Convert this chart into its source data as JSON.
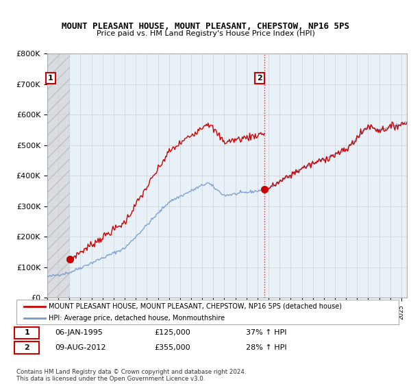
{
  "title": "MOUNT PLEASANT HOUSE, MOUNT PLEASANT, CHEPSTOW, NP16 5PS",
  "subtitle": "Price paid vs. HM Land Registry's House Price Index (HPI)",
  "ylim": [
    0,
    800000
  ],
  "yticks": [
    0,
    100000,
    200000,
    300000,
    400000,
    500000,
    600000,
    700000,
    800000
  ],
  "ytick_labels": [
    "£0",
    "£100K",
    "£200K",
    "£300K",
    "£400K",
    "£500K",
    "£600K",
    "£700K",
    "£800K"
  ],
  "grid_color": "#cccccc",
  "plot_bg": "#e8f0f8",
  "hatch_color": "#bbbbbb",
  "legend_line1": "MOUNT PLEASANT HOUSE, MOUNT PLEASANT, CHEPSTOW, NP16 5PS (detached house)",
  "legend_line2": "HPI: Average price, detached house, Monmouthshire",
  "annotation1_date": "06-JAN-1995",
  "annotation1_price": "£125,000",
  "annotation1_hpi": "37% ↑ HPI",
  "annotation2_date": "09-AUG-2012",
  "annotation2_price": "£355,000",
  "annotation2_hpi": "28% ↑ HPI",
  "footer": "Contains HM Land Registry data © Crown copyright and database right 2024.\nThis data is licensed under the Open Government Licence v3.0.",
  "sale1_x": 1995.04,
  "sale1_y": 125000,
  "sale2_x": 2012.6,
  "sale2_y": 355000,
  "xlim_start": 1993.0,
  "xlim_end": 2025.5,
  "line_color_house": "#cc0000",
  "line_color_hpi": "#7799cc",
  "marker_color": "#cc0000"
}
